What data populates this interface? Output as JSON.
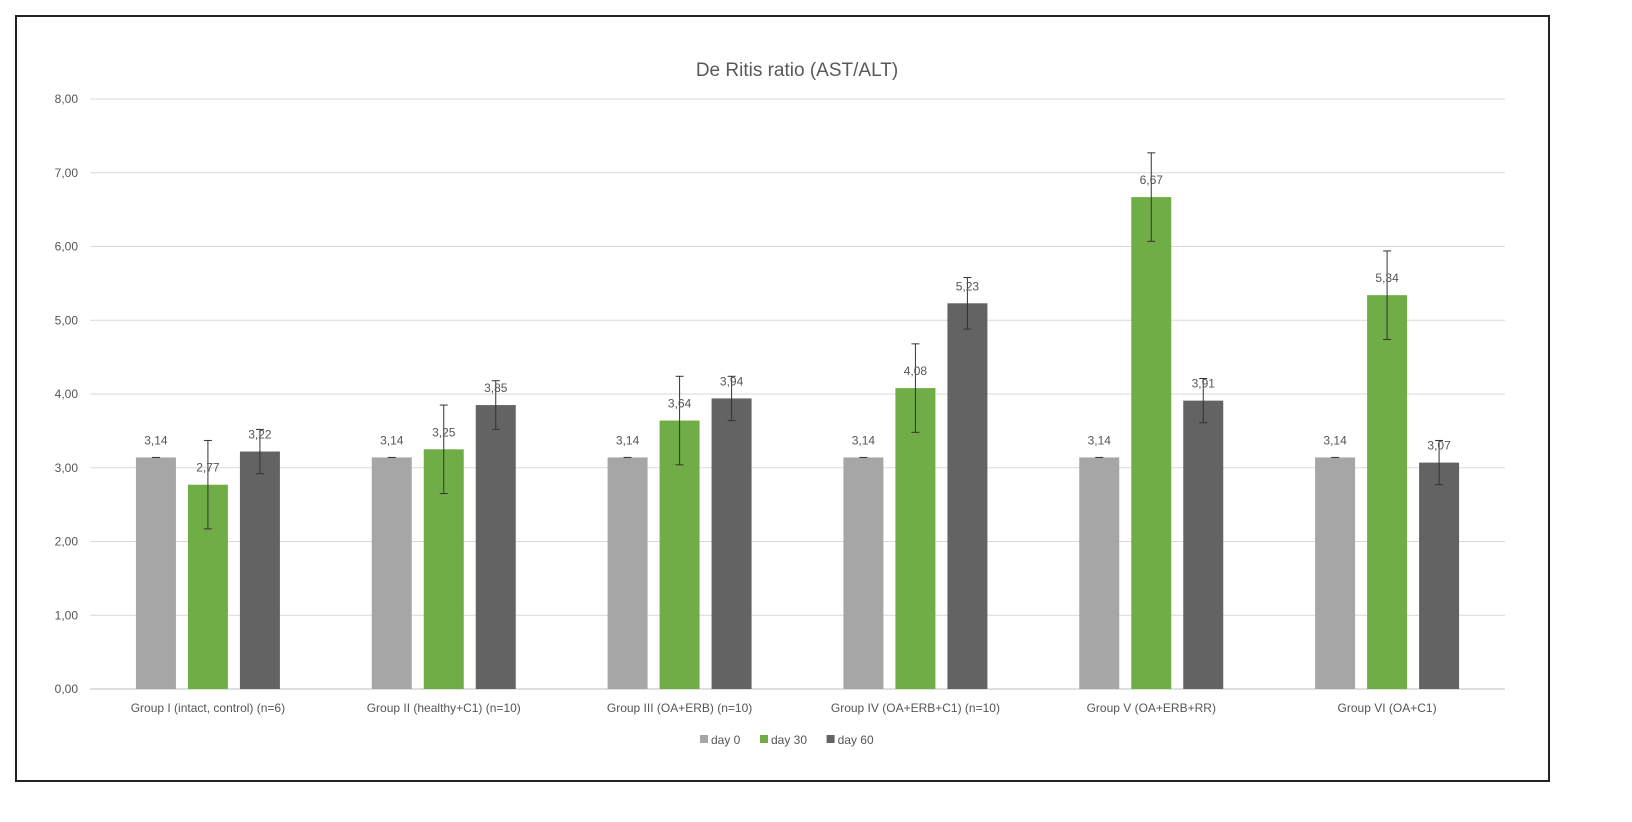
{
  "chart_data": {
    "type": "bar",
    "title": "De Ritis ratio (AST/ALT)",
    "xlabel": "",
    "ylabel": "",
    "ylim": [
      0,
      8
    ],
    "yticks": [
      "0,00",
      "1,00",
      "2,00",
      "3,00",
      "4,00",
      "5,00",
      "6,00",
      "7,00",
      "8,00"
    ],
    "grid": true,
    "legend_position": "bottom",
    "categories": [
      "Group I (intact, control) (n=6)",
      "Group II (healthy+C1) (n=10)",
      "Group III (OA+ERB) (n=10)",
      "Group IV (OA+ERB+C1) (n=10)",
      "Group V (OA+ERB+RR)",
      "Group VI (OA+C1)"
    ],
    "series": [
      {
        "name": "day 0",
        "color": "#a6a6a6",
        "values": [
          3.14,
          3.14,
          3.14,
          3.14,
          3.14,
          3.14
        ],
        "labels": [
          "3,14",
          "3,14",
          "3,14",
          "3,14",
          "3,14",
          "3,14"
        ],
        "errors": [
          0,
          0,
          0,
          0,
          0,
          0
        ]
      },
      {
        "name": "day 30",
        "color": "#70ad47",
        "values": [
          2.77,
          3.25,
          3.64,
          4.08,
          6.67,
          5.34
        ],
        "labels": [
          "2,77",
          "3,25",
          "3,64",
          "4,08",
          "6,67",
          "5,34"
        ],
        "errors": [
          0.6,
          0.6,
          0.6,
          0.6,
          0.6,
          0.6
        ]
      },
      {
        "name": "day 60",
        "color": "#636363",
        "values": [
          3.22,
          3.85,
          3.94,
          5.23,
          3.91,
          3.07
        ],
        "labels": [
          "3,22",
          "3,85",
          "3,94",
          "5,23",
          "3,91",
          "3,07"
        ],
        "errors": [
          0.3,
          0.33,
          0.3,
          0.35,
          0.3,
          0.3
        ]
      }
    ]
  }
}
